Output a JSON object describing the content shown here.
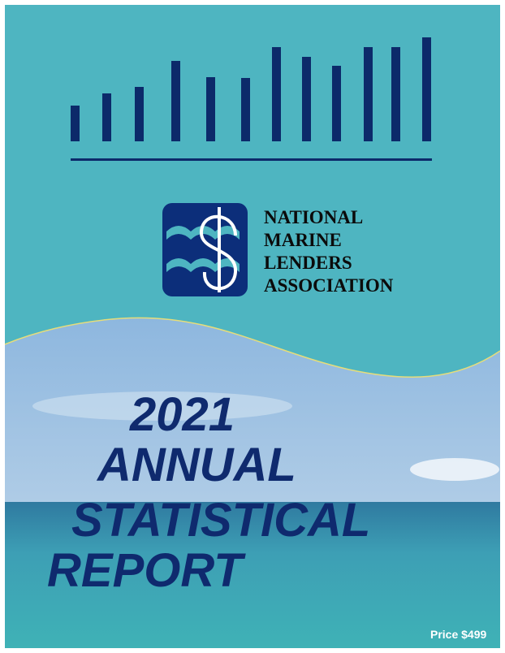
{
  "organization": {
    "lines": [
      "NATIONAL",
      "MARINE",
      "LENDERS",
      "ASSOCIATION"
    ]
  },
  "title": {
    "lines": [
      "2021",
      "ANNUAL",
      "STATISTICAL",
      "REPORT"
    ]
  },
  "price": "Price $499"
}
